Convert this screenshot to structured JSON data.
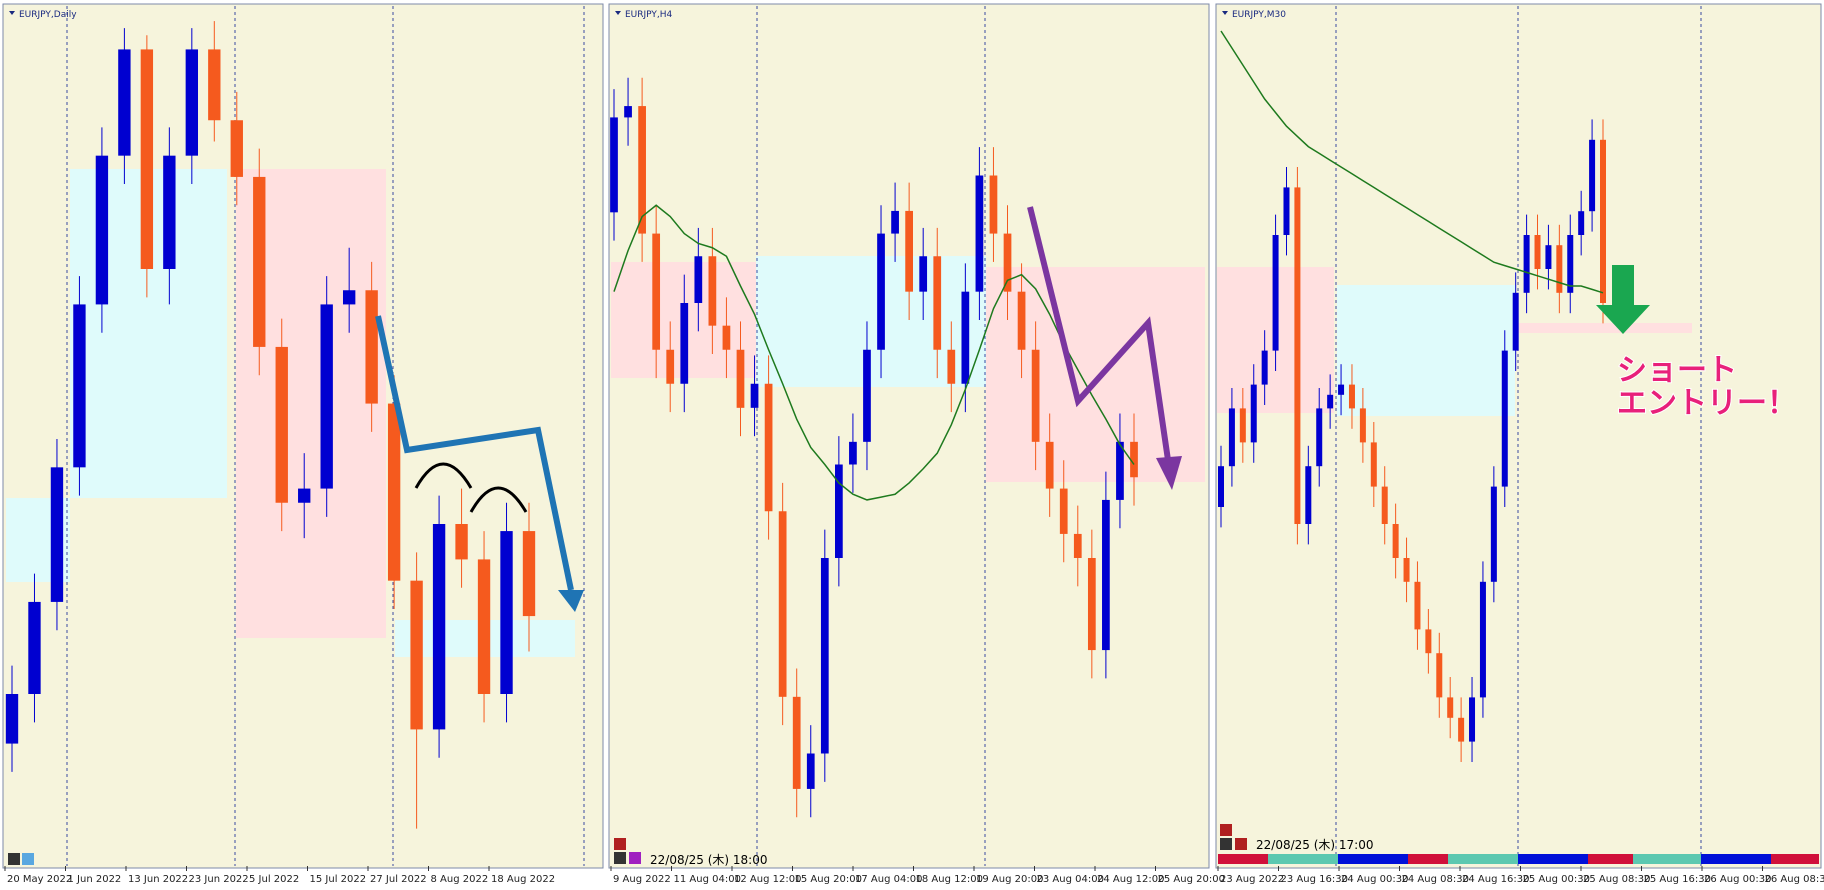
{
  "colors": {
    "up": "#0000d0",
    "down": "#f55a1e",
    "ma": "#1e7a1e"
  },
  "panels": [
    {
      "title": "EURJPY,Daily",
      "ylim": [
        132.5,
        144.5
      ],
      "candles": [
        [
          134.2,
          135.3,
          133.8,
          134.9
        ],
        [
          134.9,
          136.6,
          134.5,
          136.2
        ],
        [
          136.2,
          138.5,
          135.8,
          138.1
        ],
        [
          138.1,
          140.8,
          137.7,
          140.4
        ],
        [
          140.4,
          142.9,
          140.0,
          142.5
        ],
        [
          142.5,
          144.3,
          142.1,
          144.0
        ],
        [
          144.0,
          144.2,
          140.5,
          140.9
        ],
        [
          140.9,
          142.9,
          140.4,
          142.5
        ],
        [
          142.5,
          144.3,
          142.1,
          144.0
        ],
        [
          144.0,
          144.4,
          142.7,
          143.0
        ],
        [
          143.0,
          143.4,
          141.8,
          142.2
        ],
        [
          142.2,
          142.6,
          139.4,
          139.8
        ],
        [
          139.8,
          140.2,
          137.2,
          137.6
        ],
        [
          137.6,
          138.3,
          137.1,
          137.8
        ],
        [
          137.8,
          140.8,
          137.4,
          140.4
        ],
        [
          140.4,
          141.2,
          140.0,
          140.6
        ],
        [
          140.6,
          141.0,
          138.6,
          139.0
        ],
        [
          139.0,
          139.4,
          136.1,
          136.5
        ],
        [
          136.5,
          136.9,
          133.0,
          134.4
        ],
        [
          134.4,
          137.7,
          134.0,
          137.3
        ],
        [
          137.3,
          137.8,
          136.4,
          136.8
        ],
        [
          136.8,
          137.2,
          134.5,
          134.9
        ],
        [
          134.9,
          137.6,
          134.5,
          137.2
        ],
        [
          137.2,
          137.6,
          135.5,
          136.0
        ]
      ],
      "x_labels": [
        "20 May 2022",
        "1 Jun 2022",
        "13 Jun 2022",
        "23 Jun 2022",
        "5 Jul 2022",
        "15 Jul 2022",
        "27 Jul 2022",
        "8 Aug 2022",
        "18 Aug 2022"
      ]
    },
    {
      "title": "EURJPY,H4",
      "ylim": [
        133.0,
        139.0
      ],
      "candles": [
        [
          137.6,
          138.47,
          137.4,
          138.27
        ],
        [
          138.27,
          138.55,
          138.07,
          138.35
        ],
        [
          138.35,
          138.55,
          137.25,
          137.45
        ],
        [
          137.45,
          137.65,
          136.43,
          136.63
        ],
        [
          136.63,
          136.83,
          136.19,
          136.39
        ],
        [
          136.39,
          137.16,
          136.19,
          136.96
        ],
        [
          136.96,
          137.49,
          136.76,
          137.29
        ],
        [
          137.29,
          137.49,
          136.6,
          136.8
        ],
        [
          136.8,
          137.0,
          136.43,
          136.63
        ],
        [
          136.63,
          136.83,
          136.02,
          136.22
        ],
        [
          136.22,
          136.59,
          136.02,
          136.39
        ],
        [
          136.39,
          136.59,
          135.29,
          135.49
        ],
        [
          135.49,
          135.69,
          133.98,
          134.18
        ],
        [
          134.18,
          134.38,
          133.33,
          133.53
        ],
        [
          133.53,
          133.98,
          133.33,
          133.78
        ],
        [
          133.78,
          135.36,
          133.58,
          135.16
        ],
        [
          135.16,
          136.02,
          134.96,
          135.82
        ],
        [
          135.82,
          136.18,
          135.62,
          135.98
        ],
        [
          135.98,
          136.83,
          135.78,
          136.63
        ],
        [
          136.63,
          137.65,
          136.43,
          137.45
        ],
        [
          137.45,
          137.81,
          137.25,
          137.61
        ],
        [
          137.61,
          137.81,
          136.84,
          137.04
        ],
        [
          137.04,
          137.49,
          136.84,
          137.29
        ],
        [
          137.29,
          137.49,
          136.43,
          136.63
        ],
        [
          136.63,
          136.83,
          136.19,
          136.39
        ],
        [
          136.39,
          137.24,
          136.19,
          137.04
        ],
        [
          137.04,
          138.06,
          136.84,
          137.86
        ],
        [
          137.86,
          138.06,
          137.25,
          137.45
        ],
        [
          137.45,
          137.65,
          136.84,
          137.04
        ],
        [
          137.04,
          137.24,
          136.43,
          136.63
        ],
        [
          136.63,
          136.83,
          135.78,
          135.98
        ],
        [
          135.98,
          136.18,
          135.45,
          135.65
        ],
        [
          135.65,
          135.85,
          135.13,
          135.33
        ],
        [
          135.33,
          135.53,
          134.96,
          135.16
        ],
        [
          135.16,
          135.36,
          134.31,
          134.51
        ],
        [
          134.51,
          135.77,
          134.31,
          135.57
        ],
        [
          135.57,
          136.18,
          135.37,
          135.98
        ],
        [
          135.98,
          136.18,
          135.53,
          135.73
        ]
      ],
      "ma": [
        137.04,
        137.33,
        137.57,
        137.65,
        137.57,
        137.45,
        137.38,
        137.35,
        137.29,
        137.08,
        136.88,
        136.63,
        136.39,
        136.14,
        135.94,
        135.82,
        135.69,
        135.61,
        135.57,
        135.59,
        135.61,
        135.69,
        135.79,
        135.9,
        136.1,
        136.35,
        136.63,
        136.92,
        137.12,
        137.16,
        137.06,
        136.88,
        136.67,
        136.49,
        136.31,
        136.14,
        135.96,
        135.82
      ],
      "x_labels": [
        "9 Aug 2022",
        "11 Aug 04:00",
        "12 Aug 12:00",
        "15 Aug 20:00",
        "17 Aug 04:00",
        "18 Aug 12:00",
        "19 Aug 20:00",
        "23 Aug 04:00",
        "24 Aug 12:00",
        "25 Aug 20:00"
      ],
      "timestamp": "22/08/25 (木) 18:00"
    },
    {
      "title": "EURJPY,M30",
      "ylim": [
        135.0,
        137.5
      ],
      "candles": [
        [
          136.05,
          136.23,
          135.99,
          136.17
        ],
        [
          136.17,
          136.4,
          136.11,
          136.34
        ],
        [
          136.34,
          136.4,
          136.18,
          136.24
        ],
        [
          136.24,
          136.47,
          136.18,
          136.41
        ],
        [
          136.41,
          136.57,
          136.35,
          136.51
        ],
        [
          136.51,
          136.91,
          136.45,
          136.85
        ],
        [
          136.85,
          137.05,
          136.79,
          136.99
        ],
        [
          136.99,
          137.05,
          135.94,
          136.0
        ],
        [
          136.0,
          136.23,
          135.94,
          136.17
        ],
        [
          136.17,
          136.4,
          136.11,
          136.34
        ],
        [
          136.34,
          136.44,
          136.28,
          136.38
        ],
        [
          136.38,
          136.47,
          136.32,
          136.41
        ],
        [
          136.41,
          136.47,
          136.28,
          136.34
        ],
        [
          136.34,
          136.4,
          136.18,
          136.24
        ],
        [
          136.24,
          136.3,
          136.05,
          136.11
        ],
        [
          136.11,
          136.17,
          135.94,
          136.0
        ],
        [
          136.0,
          136.06,
          135.84,
          135.9
        ],
        [
          135.9,
          135.96,
          135.77,
          135.83
        ],
        [
          135.83,
          135.89,
          135.63,
          135.69
        ],
        [
          135.69,
          135.75,
          135.56,
          135.62
        ],
        [
          135.62,
          135.68,
          135.43,
          135.49
        ],
        [
          135.49,
          135.55,
          135.37,
          135.43
        ],
        [
          135.43,
          135.49,
          135.3,
          135.36
        ],
        [
          135.36,
          135.55,
          135.3,
          135.49
        ],
        [
          135.49,
          135.89,
          135.43,
          135.83
        ],
        [
          135.83,
          136.17,
          135.77,
          136.11
        ],
        [
          136.11,
          136.57,
          136.05,
          136.51
        ],
        [
          136.51,
          136.74,
          136.45,
          136.68
        ],
        [
          136.68,
          136.91,
          136.62,
          136.85
        ],
        [
          136.85,
          136.91,
          136.69,
          136.75
        ],
        [
          136.75,
          136.88,
          136.69,
          136.82
        ],
        [
          136.82,
          136.88,
          136.62,
          136.68
        ],
        [
          136.68,
          136.91,
          136.62,
          136.85
        ],
        [
          136.85,
          136.98,
          136.79,
          136.92
        ],
        [
          136.92,
          137.19,
          136.86,
          137.13
        ],
        [
          137.13,
          137.19,
          136.59,
          136.65
        ]
      ],
      "ma": [
        137.45,
        137.4,
        137.35,
        137.3,
        137.25,
        137.21,
        137.17,
        137.14,
        137.11,
        137.09,
        137.07,
        137.05,
        137.03,
        137.01,
        136.99,
        136.97,
        136.95,
        136.93,
        136.91,
        136.89,
        136.87,
        136.85,
        136.83,
        136.81,
        136.79,
        136.77,
        136.76,
        136.75,
        136.74,
        136.73,
        136.72,
        136.71,
        136.7,
        136.7,
        136.69,
        136.68
      ],
      "x_labels": [
        "23 Aug 2022",
        "23 Aug 16:30",
        "24 Aug 00:30",
        "24 Aug 08:30",
        "24 Aug 16:30",
        "25 Aug 00:30",
        "25 Aug 08:30",
        "25 Aug 16:30",
        "26 Aug 00:30",
        "26 Aug 08:30"
      ],
      "timestamp": "22/08/25 (木) 17:00"
    }
  ],
  "annotation": [
    "ショート",
    "エントリー！"
  ]
}
